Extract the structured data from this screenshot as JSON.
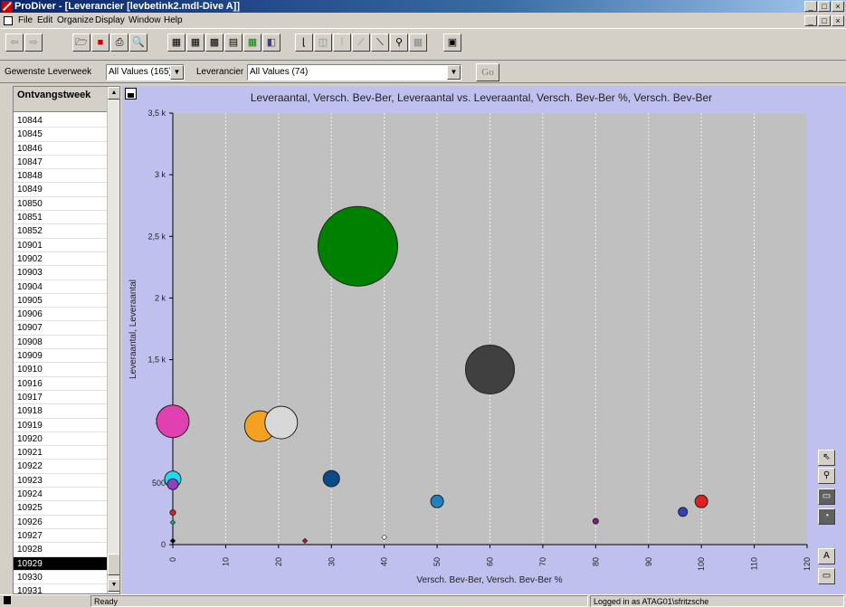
{
  "window": {
    "title": "ProDiver - [Leverancier [levbetink2.mdl-Dive A]]",
    "controls": [
      "_",
      "□",
      "×"
    ],
    "mdi_controls": [
      "_",
      "□",
      "×"
    ]
  },
  "menu": [
    "File",
    "Edit",
    "Organize",
    "Display",
    "Window",
    "Help"
  ],
  "toolbar": {
    "icons": [
      "back-arrow-icon",
      "forward-arrow-icon",
      "open-folder-icon",
      "save-icon",
      "print-icon",
      "print-preview-icon",
      "table-icon",
      "crosstab-icon",
      "multi-table-icon",
      "grid-icon",
      "spreadsheet-icon",
      "color-map-icon",
      "bar-chart-icon",
      "line-chart-icon",
      "pie-chart-icon",
      "scatter-chart-icon",
      "bubble-chart-icon",
      "pin-icon",
      "calendar-icon",
      "notes-icon"
    ]
  },
  "filters": {
    "week_label": "Gewenste Leverweek",
    "week_value": "All Values (165)",
    "supplier_label": "Leverancier",
    "supplier_value": "All Values (74)",
    "go_label": "Go"
  },
  "list": {
    "header": "Ontvangstweek",
    "items": [
      "10844",
      "10845",
      "10846",
      "10847",
      "10848",
      "10849",
      "10850",
      "10851",
      "10852",
      "10901",
      "10902",
      "10903",
      "10904",
      "10905",
      "10906",
      "10907",
      "10908",
      "10909",
      "10910",
      "10916",
      "10917",
      "10918",
      "10919",
      "10920",
      "10921",
      "10922",
      "10923",
      "10924",
      "10925",
      "10926",
      "10927",
      "10928",
      "10929",
      "10930",
      "10931"
    ],
    "selected": "10929"
  },
  "chart_data": {
    "type": "scatter",
    "title": "Leveraantal, Versch. Bev-Ber, Leveraantal vs. Leveraantal, Versch. Bev-Ber %, Versch. Bev-Ber",
    "xlabel": "Versch. Bev-Ber, Versch. Bev-Ber %",
    "ylabel": "Leveraantal, Leveraantal",
    "xlim": [
      0,
      120
    ],
    "ylim": [
      0,
      3500
    ],
    "x_ticks": [
      "0",
      "10",
      "20",
      "30",
      "40",
      "50",
      "60",
      "70",
      "80",
      "90",
      "100",
      "110",
      "120"
    ],
    "y_ticks": [
      "0",
      "500",
      "1 k",
      "1,5 k",
      "2 k",
      "2,5 k",
      "3 k",
      "3,5 k"
    ],
    "x_tick_values": [
      0,
      10,
      20,
      30,
      40,
      50,
      60,
      70,
      80,
      90,
      100,
      110,
      120
    ],
    "y_tick_values": [
      0,
      500,
      1000,
      1500,
      2000,
      2500,
      3000,
      3500
    ],
    "grid": "vertical-dashed",
    "points": [
      {
        "x": 35,
        "y": 2420,
        "size": 44,
        "color": "#008000"
      },
      {
        "x": 60,
        "y": 1420,
        "size": 27,
        "color": "#404040"
      },
      {
        "x": 0,
        "y": 1000,
        "size": 18,
        "color": "#e040b0"
      },
      {
        "x": 16.5,
        "y": 960,
        "size": 17,
        "color": "#f4a020"
      },
      {
        "x": 20.5,
        "y": 990,
        "size": 18,
        "color": "#d8d8d8"
      },
      {
        "x": 30,
        "y": 535,
        "size": 9,
        "color": "#0a4a8a"
      },
      {
        "x": 0,
        "y": 530,
        "size": 9,
        "color": "#20d8f0"
      },
      {
        "x": 0,
        "y": 490,
        "size": 6,
        "color": "#9040c0"
      },
      {
        "x": 50,
        "y": 350,
        "size": 7,
        "color": "#2080c0"
      },
      {
        "x": 100,
        "y": 350,
        "size": 7,
        "color": "#e02020"
      },
      {
        "x": 96.5,
        "y": 265,
        "size": 5,
        "color": "#3040c0"
      },
      {
        "x": 80,
        "y": 190,
        "size": 3,
        "color": "#802080"
      },
      {
        "x": 0,
        "y": 260,
        "size": 3,
        "color": "#e02020"
      },
      {
        "x": 0,
        "y": 180,
        "size": 2,
        "color": "#20a060"
      },
      {
        "x": 40,
        "y": 60,
        "size": 2,
        "color": "#ffffff"
      },
      {
        "x": 25,
        "y": 30,
        "size": 2,
        "color": "#a02020"
      },
      {
        "x": 0,
        "y": 30,
        "size": 2,
        "color": "#000000"
      }
    ]
  },
  "side_tools": [
    "pointer-icon",
    "zoom-icon",
    "scale-icon",
    "gauge-icon"
  ],
  "legend_tools": [
    "text-box-icon",
    "frame-icon"
  ],
  "status": {
    "text": "Ready",
    "user": "Logged in as ATAG01\\sfritzsche"
  }
}
